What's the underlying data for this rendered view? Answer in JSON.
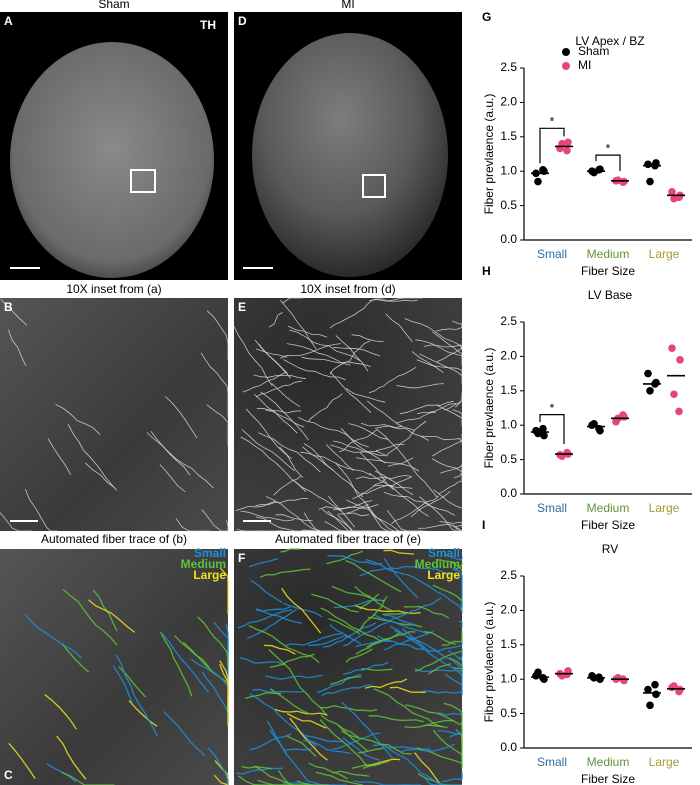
{
  "images": [
    {
      "label": "A",
      "caption": "Sham",
      "stain": "TH"
    },
    {
      "label": "D",
      "caption": "MI"
    },
    {
      "label": "B",
      "caption": "10X inset from (a)"
    },
    {
      "label": "E",
      "caption": "10X inset from (d)"
    },
    {
      "label": "C",
      "caption": "Automated fiber trace of (b)"
    },
    {
      "label": "F",
      "caption": "Automated fiber trace of (e)"
    }
  ],
  "trace_legend": [
    {
      "text": "Small",
      "color": "#1f8fd6"
    },
    {
      "text": "Medium",
      "color": "#5fc23a"
    },
    {
      "text": "Large",
      "color": "#f2e21a"
    }
  ],
  "chart_data": [
    {
      "type": "dot",
      "panel": "G",
      "title": "LV Apex / BZ",
      "xlabel": "Fiber Size",
      "ylabel": "Fiber prevlaence (a.u.)",
      "legend": true,
      "categories": [
        "Small",
        "Medium",
        "Large"
      ],
      "category_colors": [
        "#2a6ea5",
        "#5e9438",
        "#a59a32"
      ],
      "series": [
        {
          "name": "Sham",
          "color": "#000000",
          "values": [
            [
              0.97,
              1.0,
              0.85,
              1.02
            ],
            [
              1.0,
              1.03,
              0.98,
              1.02
            ],
            [
              1.1,
              1.12,
              0.85,
              1.08
            ]
          ],
          "medians": [
            0.97,
            1.0,
            1.08
          ]
        },
        {
          "name": "MI",
          "color": "#e8457a",
          "values": [
            [
              1.33,
              1.42,
              1.4,
              1.3
            ],
            [
              0.86,
              0.85,
              0.87,
              0.84
            ],
            [
              0.7,
              0.65,
              0.6,
              0.62
            ]
          ],
          "medians": [
            1.36,
            0.86,
            0.65
          ]
        }
      ],
      "ylim": [
        0,
        2.5
      ],
      "yticks": [
        {
          "value": 0,
          "label": "0.0"
        },
        0.5,
        {
          "value": 1,
          "label": "1.0"
        },
        1.5,
        {
          "value": 2,
          "label": "2.0"
        },
        2.5
      ],
      "significance": [
        {
          "category": 0,
          "label": "*"
        },
        {
          "category": 1,
          "label": "*"
        }
      ]
    },
    {
      "type": "dot",
      "panel": "H",
      "title": "LV Base",
      "xlabel": "Fiber Size",
      "ylabel": "Fiber prevlaence (a.u.)",
      "legend": false,
      "categories": [
        "Small",
        "Medium",
        "Large"
      ],
      "category_colors": [
        "#2a6ea5",
        "#5e9438",
        "#a59a32"
      ],
      "series": [
        {
          "color": "#000000",
          "values": [
            [
              0.92,
              0.85,
              0.88,
              0.95
            ],
            [
              1.0,
              0.92,
              1.02,
              0.95
            ],
            [
              1.75,
              1.62,
              1.5,
              1.6
            ]
          ],
          "medians": [
            0.9,
            0.98,
            1.6
          ]
        },
        {
          "color": "#e8457a",
          "values": [
            [
              0.57,
              0.58,
              0.55,
              0.6
            ],
            [
              1.05,
              1.12,
              1.1,
              1.15
            ],
            [
              2.12,
              1.95,
              1.45,
              1.2
            ]
          ],
          "medians": [
            0.58,
            1.1,
            1.72
          ]
        }
      ],
      "ylim": [
        0,
        2.5
      ],
      "yticks": [
        {
          "value": 0,
          "label": "0.0"
        },
        0.5,
        {
          "value": 1,
          "label": "1.0"
        },
        1.5,
        {
          "value": 2,
          "label": "2.0"
        },
        2.5
      ],
      "significance": [
        {
          "category": 0,
          "label": "*"
        }
      ]
    },
    {
      "type": "dot",
      "panel": "I",
      "title": "RV",
      "xlabel": "Fiber Size",
      "ylabel": "Fiber prevlaence (a.u.)",
      "legend": false,
      "categories": [
        "Small",
        "Medium",
        "Large"
      ],
      "category_colors": [
        "#2a6ea5",
        "#5e9438",
        "#a59a32"
      ],
      "series": [
        {
          "color": "#000000",
          "values": [
            [
              1.05,
              1.0,
              1.1,
              1.02
            ],
            [
              1.05,
              1.0,
              1.02,
              1.03
            ],
            [
              0.85,
              0.78,
              0.62,
              0.92
            ]
          ],
          "medians": [
            1.03,
            1.02,
            0.8
          ]
        },
        {
          "color": "#e8457a",
          "values": [
            [
              1.08,
              1.12,
              1.05,
              1.07
            ],
            [
              1.0,
              0.98,
              1.02,
              1.0
            ],
            [
              0.88,
              0.85,
              0.9,
              0.82
            ]
          ],
          "medians": [
            1.08,
            1.0,
            0.86
          ]
        }
      ],
      "ylim": [
        0,
        2.5
      ],
      "yticks": [
        {
          "value": 0,
          "label": "0.0"
        },
        0.5,
        {
          "value": 1,
          "label": "1.0"
        },
        1.5,
        {
          "value": 2,
          "label": "2.0"
        },
        2.5
      ],
      "significance": []
    }
  ]
}
